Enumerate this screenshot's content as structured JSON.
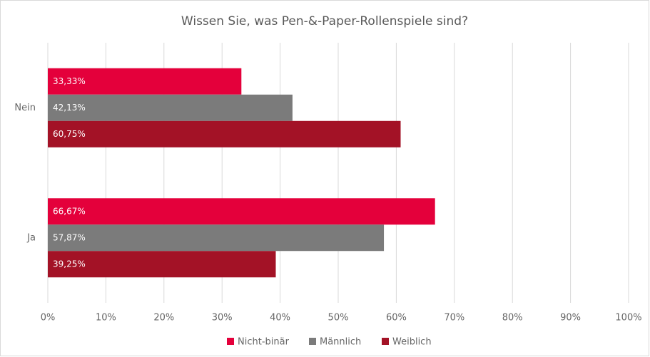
{
  "chart_data": {
    "type": "bar",
    "orientation": "horizontal",
    "title": "Wissen Sie, was Pen-&-Paper-Rollenspiele sind?",
    "categories": [
      "Nein",
      "Ja"
    ],
    "series": [
      {
        "name": "Nicht-binär",
        "color": "#e4003b",
        "values": [
          33.33,
          66.67
        ],
        "value_labels": [
          "33,33%",
          "66,67%"
        ]
      },
      {
        "name": "Männlich",
        "color": "#7b7b7b",
        "values": [
          42.13,
          57.87
        ],
        "value_labels": [
          "42,13%",
          "57,87%"
        ]
      },
      {
        "name": "Weiblich",
        "color": "#a31226",
        "values": [
          60.75,
          39.25
        ],
        "value_labels": [
          "60,75%",
          "39,25%"
        ]
      }
    ],
    "xlim": [
      0,
      100
    ],
    "xticks": [
      {
        "value": 0,
        "label": "0%"
      },
      {
        "value": 10,
        "label": "10%"
      },
      {
        "value": 20,
        "label": "20%"
      },
      {
        "value": 30,
        "label": "30%"
      },
      {
        "value": 40,
        "label": "40%"
      },
      {
        "value": 50,
        "label": "50%"
      },
      {
        "value": 60,
        "label": "60%"
      },
      {
        "value": 70,
        "label": "70%"
      },
      {
        "value": 80,
        "label": "80%"
      },
      {
        "value": 90,
        "label": "90%"
      },
      {
        "value": 100,
        "label": "100%"
      }
    ],
    "grid": true,
    "legend": "bottom"
  }
}
